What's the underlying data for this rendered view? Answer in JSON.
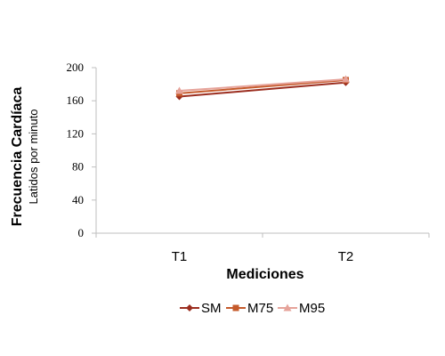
{
  "chart_data": {
    "type": "line",
    "categories": [
      "T1",
      "T2"
    ],
    "series": [
      {
        "name": "SM",
        "values": [
          165,
          182
        ],
        "color": "#9b2d1f",
        "marker": "diamond"
      },
      {
        "name": "M75",
        "values": [
          169,
          185
        ],
        "color": "#c55a2b",
        "marker": "square"
      },
      {
        "name": "M95",
        "values": [
          172,
          186
        ],
        "color": "#e6a39a",
        "marker": "triangle"
      }
    ],
    "xlabel": "Mediciones",
    "ylabel": "Frecuencia Cardíaca",
    "ylabel_sub": "Latidos por minuto",
    "ylim": [
      0,
      200
    ],
    "yticks": [
      "0",
      "40",
      "80",
      "120",
      "160",
      "200"
    ],
    "grid": false,
    "legend_position": "bottom"
  }
}
